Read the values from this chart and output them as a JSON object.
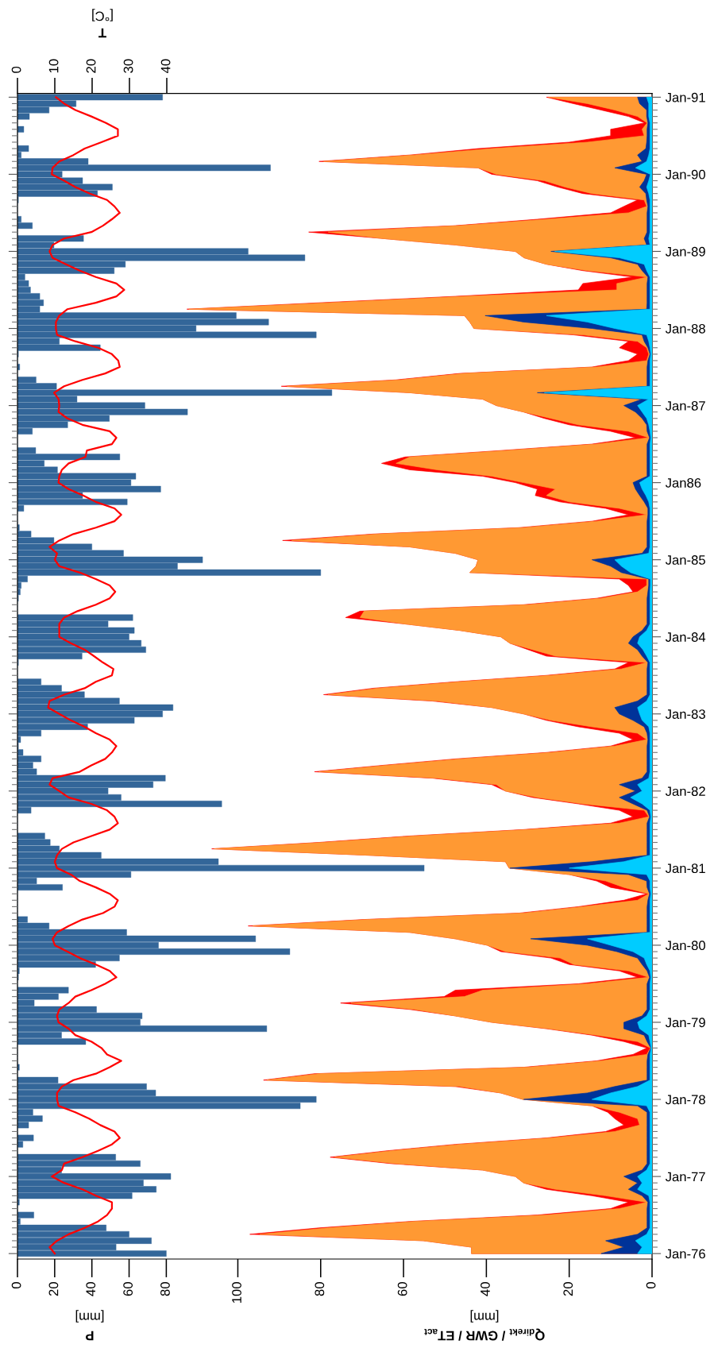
{
  "chart_data": [
    {
      "type": "bar",
      "orientation": "horizontal",
      "tick_labels": "x",
      "categories": [
        null,
        null,
        null,
        null,
        null,
        null,
        null,
        null,
        null,
        null,
        null,
        null,
        null,
        null,
        null,
        null,
        null,
        null,
        null,
        null,
        null,
        null,
        null,
        null,
        null,
        null,
        null,
        null,
        null,
        null,
        null,
        null,
        null,
        null,
        null,
        null,
        null,
        null,
        null,
        null,
        null,
        null,
        null,
        null,
        null,
        null,
        null,
        null,
        null,
        null,
        null,
        null,
        null,
        null,
        null,
        null,
        null,
        null,
        null,
        null,
        null,
        null,
        null,
        null,
        null,
        null,
        null,
        null,
        null,
        null,
        null,
        null,
        null,
        null,
        null,
        null,
        null,
        null,
        null,
        null,
        null,
        null,
        null,
        null,
        null,
        null,
        null,
        null,
        null,
        null,
        null,
        null,
        null,
        null,
        null,
        null,
        null,
        null,
        null,
        null,
        null,
        null,
        null,
        null,
        null,
        null,
        null,
        null,
        null,
        null,
        null,
        null,
        null,
        null,
        null,
        null,
        null,
        null,
        null,
        null,
        null,
        null,
        null,
        null,
        null,
        null,
        null,
        null,
        null,
        null,
        null,
        null,
        null,
        null,
        null,
        null,
        null,
        null,
        null,
        null,
        null,
        null,
        null,
        null,
        null,
        null,
        null,
        null,
        null,
        null,
        null,
        null,
        null,
        null,
        null,
        null,
        null,
        null,
        null,
        null,
        null,
        null,
        null,
        null,
        null,
        null,
        null,
        null,
        null,
        null,
        null,
        null,
        null,
        null,
        null,
        null,
        null,
        null,
        null,
        null,
        null
      ],
      "series": [
        {
          "type": "bar",
          "color": "#336699",
          "values": [
            78,
            31.5,
            17,
            6.4,
            0,
            3.4,
            0,
            0,
            6,
            2,
            38,
            136,
            24,
            35,
            51,
            43,
            0.5,
            0,
            0,
            2,
            8,
            0,
            35.5,
            19.6,
            124,
            154.5,
            58,
            52,
            4,
            6,
            7,
            12,
            14,
            12,
            117.6,
            135,
            96,
            160.6,
            22.5,
            44.5,
            0.5,
            0,
            1.2,
            0,
            10,
            21,
            169,
            32,
            68.5,
            91.4,
            49.4,
            27,
            8,
            0,
            0,
            9.8,
            55,
            14.4,
            21.5,
            63.6,
            61,
            77,
            35,
            59,
            3.4,
            0,
            0,
            1,
            7.3,
            19.6,
            40,
            57,
            99.5,
            86,
            163,
            5.4,
            2,
            1.5,
            0.5,
            0,
            0,
            62,
            48.7,
            62.8,
            60,
            66.5,
            69,
            34.7,
            0.5,
            0,
            0,
            12.7,
            23.7,
            36,
            54.8,
            83.6,
            78,
            62.8,
            37.7,
            12.7,
            1.7,
            0.5,
            3,
            12.7,
            8.3,
            10.3,
            79.5,
            72.9,
            48.7,
            55.7,
            109.8,
            7.3,
            0,
            0,
            0,
            14.7,
            17.6,
            22.5,
            45,
            108,
            218.6,
            61,
            10.3,
            24.2,
            0,
            0,
            0,
            0,
            5.4,
            17,
            58.7,
            128,
            75.8,
            146.4,
            54.8,
            42,
            1,
            0.5,
            0,
            27.4,
            22,
            9,
            42.5,
            67,
            66,
            134,
            23.7,
            36.7,
            0,
            0,
            0,
            1,
            0,
            21.8,
            69.4,
            74.3,
            160.6,
            152,
            8.3,
            13.4,
            6,
            0,
            8.6,
            2.9,
            0,
            52.8,
            66,
            23.7,
            82.4,
            67.7,
            74.6,
            61.6,
            1,
            0,
            8.8,
            1.5,
            47.7,
            60,
            72,
            53,
            80
          ]
        },
        {
          "type": "line",
          "axis": "x2",
          "color": "#ff0000",
          "values": [
            10.3,
            12.5,
            15.5,
            19.8,
            23.7,
            26.9,
            26.9,
            22.5,
            18,
            15,
            11.2,
            9.4,
            9.2,
            12.5,
            15.5,
            19.4,
            24,
            26,
            27.4,
            25.3,
            22.9,
            19.8,
            12.5,
            9.4,
            8.6,
            9.4,
            13,
            16.7,
            21,
            26.5,
            28.6,
            26.5,
            21,
            13.4,
            11.2,
            10.3,
            10.3,
            10.6,
            15.5,
            21.6,
            25.3,
            27,
            27.4,
            23.5,
            17.4,
            12.5,
            9.8,
            11,
            11.2,
            11,
            13.4,
            17.4,
            24.7,
            26.5,
            25.3,
            18.6,
            18.2,
            13.7,
            11.9,
            11.2,
            11,
            13.7,
            17.6,
            21,
            26,
            27.8,
            26,
            21,
            15,
            11.2,
            8.6,
            10.6,
            10,
            11.2,
            16.7,
            21,
            24.7,
            26.2,
            24.7,
            21,
            16.1,
            12.5,
            11.2,
            11.2,
            11.2,
            14.3,
            18,
            20.5,
            22.9,
            25.7,
            25.3,
            21,
            18,
            12.5,
            8.6,
            8.2,
            11.2,
            14.3,
            18,
            21,
            24.7,
            26.5,
            25.3,
            23.5,
            19.8,
            16.7,
            9.4,
            8.6,
            11.2,
            13.7,
            19.8,
            24,
            26,
            26.9,
            24.7,
            19.8,
            15,
            11.9,
            10.6,
            10,
            10.6,
            14.3,
            16.7,
            21,
            24.7,
            26.9,
            26,
            22.9,
            17.4,
            13.7,
            10.6,
            9.4,
            10,
            13.4,
            16.7,
            21,
            24.7,
            26.5,
            23.5,
            19.8,
            15.5,
            13.7,
            11.2,
            10.6,
            11,
            13.7,
            15.5,
            19.8,
            22.5,
            24,
            27.8,
            24.7,
            21,
            15,
            11.9,
            10.6,
            10.6,
            11,
            15.5,
            19.2,
            22.2,
            26,
            27.4,
            25.3,
            21.6,
            17.4,
            12.5,
            11.9,
            9.2,
            12.5,
            17.4,
            21,
            25.3,
            25.3,
            24,
            21.6,
            18,
            13.7,
            10.6,
            8.6,
            10
          ]
        }
      ],
      "xlim": [
        0,
        341.1
      ],
      "xticks": [
        0,
        20,
        40,
        60,
        80
      ],
      "x2lim": [
        0,
        170
      ],
      "x2ticks": [
        0,
        10,
        20,
        30,
        40
      ],
      "xlabel": "P\n[mm]",
      "x2label": "T\n[°C]"
    },
    {
      "type": "area",
      "orientation": "horizontal",
      "categories": [
        "Jan-91",
        null,
        null,
        null,
        null,
        null,
        null,
        null,
        null,
        null,
        null,
        null,
        "Jan-90",
        null,
        null,
        null,
        null,
        null,
        null,
        null,
        null,
        null,
        null,
        null,
        "Jan-89",
        null,
        null,
        null,
        null,
        null,
        null,
        null,
        null,
        null,
        null,
        null,
        "Jan-88",
        null,
        null,
        null,
        null,
        null,
        null,
        null,
        null,
        null,
        null,
        null,
        "Jan-87",
        null,
        null,
        null,
        null,
        null,
        null,
        null,
        null,
        null,
        null,
        null,
        "Jan86",
        null,
        null,
        null,
        null,
        null,
        null,
        null,
        null,
        null,
        null,
        null,
        "Jan-85",
        null,
        null,
        null,
        null,
        null,
        null,
        null,
        null,
        null,
        null,
        null,
        "Jan-84",
        null,
        null,
        null,
        null,
        null,
        null,
        null,
        null,
        null,
        null,
        null,
        "Jan-83",
        null,
        null,
        null,
        null,
        null,
        null,
        null,
        null,
        null,
        null,
        null,
        "Jan-82",
        null,
        null,
        null,
        null,
        null,
        null,
        null,
        null,
        null,
        null,
        null,
        "Jan-81",
        null,
        null,
        null,
        null,
        null,
        null,
        null,
        null,
        null,
        null,
        null,
        "Jan-80",
        null,
        null,
        null,
        null,
        null,
        null,
        null,
        null,
        null,
        null,
        null,
        "Jan-79",
        null,
        null,
        null,
        null,
        null,
        null,
        null,
        null,
        null,
        null,
        null,
        "Jan-78",
        null,
        null,
        null,
        null,
        null,
        null,
        null,
        null,
        null,
        null,
        null,
        "Jan-77",
        null,
        null,
        null,
        null,
        null,
        null,
        null,
        null,
        null,
        null,
        null,
        "Jan-76"
      ],
      "series": [
        {
          "color": "#ff0000",
          "values": [
            25.5,
            19,
            12.3,
            5.7,
            1.8,
            10,
            10,
            20,
            42,
            58.5,
            80.4,
            42,
            38.7,
            27.7,
            22.7,
            16.7,
            3.5,
            6.8,
            10,
            27.7,
            47.5,
            82.9,
            65,
            47.5,
            33,
            30.9,
            25.5,
            16.7,
            4.6,
            16.7,
            17.8,
            47.5,
            80.4,
            112.3,
            45.3,
            44,
            43,
            18.9,
            5.7,
            7.9,
            3.5,
            5.7,
            14.5,
            46.4,
            61.8,
            89.5,
            58.5,
            40.9,
            37.6,
            31,
            26,
            20,
            10,
            4,
            14.5,
            36.5,
            59.6,
            65.3,
            58.5,
            40.9,
            33,
            27.7,
            28.2,
            22.2,
            11.2,
            5.7,
            14.5,
            32,
            67.3,
            89.2,
            58.5,
            47.5,
            42,
            42.5,
            44,
            7.9,
            5.7,
            4.6,
            13.4,
            31,
            70.5,
            74,
            59.6,
            46.4,
            36.5,
            34.3,
            29.9,
            25.5,
            5.7,
            9,
            25.5,
            47.5,
            67.3,
            79.3,
            53,
            38.7,
            31,
            25.5,
            17.8,
            7.9,
            4.6,
            10,
            25.5,
            47.5,
            65,
            81.5,
            53,
            38.7,
            35.4,
            28.8,
            17.8,
            7.9,
            4.6,
            10,
            31,
            58.5,
            80.4,
            106.3,
            68.4,
            35.4,
            34.5,
            20,
            13.4,
            10,
            1.3,
            6.8,
            17.8,
            32,
            69.5,
            97.5,
            58.5,
            47.5,
            39.8,
            36.5,
            24.4,
            20,
            7.9,
            3.5,
            17.8,
            47.5,
            50.2,
            75.2,
            58.5,
            47.5,
            38.7,
            25.5,
            14.5,
            6.8,
            1.3,
            4.6,
            13.4,
            31,
            81.5,
            93.8,
            47.5,
            36.5,
            31.2,
            14.5,
            10.7,
            9,
            6.8,
            11.2,
            25.5,
            47.5,
            64,
            77.7,
            62.9,
            40.9,
            33,
            31,
            25.5,
            14.5,
            5.7,
            10,
            27.7,
            58.5,
            80.4,
            97.1,
            55.2,
            43.6,
            43.6
          ]
        },
        {
          "color": "#ff9933",
          "values": [
            25,
            15.6,
            9,
            3.5,
            1.2,
            2.4,
            1.9,
            15.6,
            38.7,
            57.4,
            79.3,
            42,
            37.6,
            26,
            21,
            14.5,
            1.9,
            1.3,
            5.7,
            25.5,
            46.4,
            78.2,
            65,
            47.5,
            33,
            30.9,
            25.5,
            15.6,
            1.1,
            8.5,
            8.5,
            45.3,
            78.2,
            111.8,
            45.3,
            44,
            43,
            16.7,
            3.5,
            1.3,
            0.8,
            1.3,
            13.4,
            45.3,
            60.7,
            88.1,
            58.5,
            40.9,
            37.6,
            31,
            24.4,
            17.8,
            5.7,
            0.8,
            13.4,
            35.4,
            58.5,
            61.8,
            51.9,
            38.7,
            31,
            23.3,
            25.5,
            20,
            7.9,
            1.3,
            13.4,
            31,
            66.2,
            87,
            58.5,
            47.5,
            42,
            42.5,
            44,
            1.3,
            1.3,
            3.5,
            12.3,
            29.9,
            69.5,
            70.5,
            59.6,
            46.4,
            36.5,
            34.3,
            28.8,
            23.3,
            1.3,
            7.4,
            24.4,
            46.4,
            66.2,
            78.2,
            51.9,
            38.7,
            31,
            24.4,
            14.5,
            3.5,
            1.3,
            9,
            24.4,
            46.4,
            64,
            80.4,
            51.9,
            37.6,
            35.4,
            27.7,
            16.7,
            1.9,
            0.8,
            7.9,
            29.9,
            57.4,
            79.3,
            105.7,
            68.4,
            35.4,
            34.5,
            20,
            11.2,
            6.8,
            0.8,
            3.5,
            16.7,
            31,
            68.4,
            96.4,
            58.5,
            47.5,
            39.8,
            35.4,
            22.2,
            18.9,
            5.7,
            0.8,
            15.6,
            40.9,
            45.3,
            72.7,
            57.4,
            47.5,
            38.7,
            25,
            13.4,
            3.5,
            0.4,
            1.3,
            12.3,
            29.9,
            80.4,
            93,
            46.4,
            36.5,
            31.2,
            14.5,
            7.9,
            3.5,
            3,
            9,
            24.4,
            46.4,
            62.9,
            76.6,
            61.8,
            40.9,
            33,
            31,
            23.3,
            11.2,
            1.3,
            7.9,
            25.5,
            57.4,
            78.2,
            94.7,
            55.2,
            43.6,
            43.6
          ]
        },
        {
          "color": "#003399",
          "values": [
            3.5,
            3,
            1.3,
            1.3,
            1,
            1.2,
            1.2,
            1.3,
            1.5,
            3.5,
            2.4,
            9,
            1.3,
            1.9,
            3,
            1.5,
            1.3,
            1,
            1.2,
            1.2,
            1.2,
            1.2,
            1.9,
            1.3,
            24.4,
            10,
            3.5,
            2.4,
            1,
            1.2,
            1.2,
            1.2,
            1.2,
            1.3,
            40.3,
            31,
            14.5,
            2.4,
            1.9,
            1,
            0.5,
            1,
            1.2,
            1.2,
            1.2,
            1.2,
            27.7,
            2.4,
            6.8,
            4,
            2.4,
            1.3,
            1.2,
            0.6,
            1.2,
            1.2,
            1.2,
            1.2,
            1.2,
            1.2,
            4.6,
            4,
            3,
            1.9,
            1,
            1,
            1.2,
            1.2,
            1.2,
            1.2,
            1.2,
            2.4,
            14.5,
            10,
            7.4,
            0.8,
            0.8,
            1,
            1.2,
            1.2,
            1.2,
            1.2,
            1.2,
            2.4,
            4.6,
            5.7,
            3.5,
            2.4,
            1,
            1.2,
            1.2,
            1.2,
            1.2,
            1.2,
            3.5,
            9,
            7.9,
            4.6,
            1.9,
            1.2,
            1,
            1.2,
            1.2,
            1.2,
            1.2,
            1.2,
            2.4,
            7.9,
            4,
            7.9,
            4.6,
            1.2,
            0.6,
            1.2,
            1.2,
            1.2,
            1.2,
            1.2,
            1.2,
            14.5,
            34.3,
            5.7,
            1.3,
            1.2,
            0.6,
            1,
            1.2,
            1.2,
            1.2,
            1.2,
            1.2,
            29.3,
            15.6,
            8.5,
            3.5,
            2.4,
            1.2,
            0.6,
            1.2,
            1.2,
            1.2,
            1.2,
            1.2,
            2.4,
            6.8,
            6.8,
            1.9,
            1.2,
            0.3,
            1,
            1.2,
            1.2,
            1.2,
            1.2,
            9,
            15.6,
            31,
            3.5,
            1.2,
            1.2,
            1.2,
            1.2,
            1.2,
            1.2,
            1.2,
            1.2,
            1.2,
            2.4,
            6.8,
            3.5,
            5.7,
            2.4,
            1,
            1.2,
            1.2,
            1.2,
            1.2,
            3.5,
            11.2,
            6.8,
            12.3
          ]
        },
        {
          "color": "#00ccff",
          "values": [
            1.3,
            0.8,
            0.8,
            0.8,
            0.5,
            0.5,
            0.5,
            0.5,
            0.5,
            0.8,
            1.3,
            4,
            0.4,
            0.8,
            1.3,
            0.8,
            0.5,
            0.5,
            0.5,
            0.5,
            0.5,
            0.5,
            0.8,
            0.5,
            23.5,
            7.9,
            1.9,
            1.3,
            0.5,
            0.5,
            0.5,
            0.5,
            0.5,
            0.5,
            25.5,
            15.6,
            9,
            1.3,
            0.8,
            0.5,
            0.3,
            0.5,
            0.5,
            0.5,
            0.5,
            0.5,
            26,
            0.8,
            3.5,
            2.4,
            1.3,
            0.8,
            0.5,
            0.3,
            0.5,
            0.5,
            0.5,
            0.5,
            0.5,
            0.5,
            3,
            2.4,
            1.5,
            0.8,
            0.5,
            0.5,
            0.5,
            0.5,
            0.5,
            0.5,
            0.5,
            0.8,
            9,
            7.4,
            5.2,
            0.4,
            0.4,
            0.5,
            0.5,
            0.5,
            0.5,
            0.5,
            0.5,
            1.3,
            3,
            3.5,
            2.2,
            1.3,
            0.5,
            0.5,
            0.5,
            0.5,
            0.5,
            0.5,
            1.3,
            3.5,
            3,
            2.4,
            0.8,
            0.5,
            0.5,
            0.5,
            0.5,
            0.5,
            0.5,
            0.5,
            0.8,
            3.5,
            2.4,
            5.2,
            2.4,
            0.5,
            0.3,
            0.5,
            0.5,
            0.5,
            0.5,
            0.5,
            0.5,
            6.8,
            20,
            1.3,
            0.5,
            0.5,
            0.3,
            0.5,
            0.5,
            0.5,
            0.5,
            0.5,
            0.5,
            15.6,
            10,
            4.6,
            1.9,
            1.3,
            0.5,
            0.3,
            0.5,
            0.5,
            0.5,
            0.5,
            0.5,
            1.3,
            3.5,
            3,
            0.8,
            0.5,
            0.2,
            0.5,
            0.5,
            0.5,
            0.5,
            0.5,
            3.5,
            10,
            14.5,
            1.3,
            0.5,
            0.5,
            0.5,
            0.5,
            0.5,
            0.5,
            0.5,
            0.5,
            0.5,
            1.3,
            3.5,
            2.4,
            3.5,
            0.8,
            0.5,
            0.5,
            0.5,
            0.5,
            0.5,
            1.3,
            4,
            2.4,
            3.5
          ]
        }
      ],
      "xlim": [
        153.2,
        0
      ],
      "xticks": [
        0,
        20,
        40,
        60,
        80,
        100
      ],
      "xlabel": "Q$_{direkt}$ / GWR / ET$_{act}$\n[mm]"
    }
  ]
}
